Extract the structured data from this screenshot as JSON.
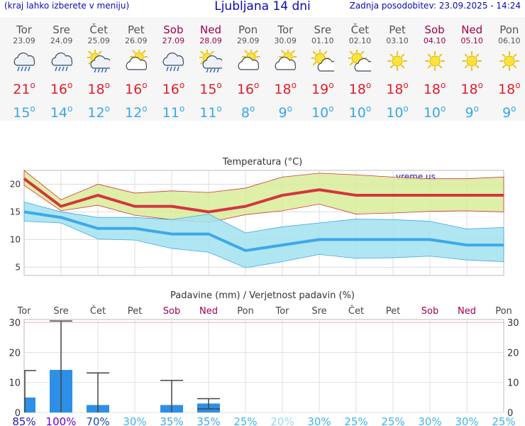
{
  "header": {
    "left_note": "(kraj lahko izberete v meniju)",
    "title": "Ljubljana 14 dni",
    "updated": "Zadnja posodobitev: 23.09.2025 - 14:24"
  },
  "degree_symbol": "o",
  "days": [
    {
      "name": "Tor",
      "date": "23.09",
      "weekend": false,
      "icon": "cloud-rain-icon",
      "tmax": "21",
      "tmin": "15"
    },
    {
      "name": "Sre",
      "date": "24.09",
      "weekend": false,
      "icon": "cloud-rain-icon",
      "tmax": "16",
      "tmin": "14"
    },
    {
      "name": "Čet",
      "date": "25.09",
      "weekend": false,
      "icon": "sun-cloud-rain-icon",
      "tmax": "18",
      "tmin": "12"
    },
    {
      "name": "Pet",
      "date": "26.09",
      "weekend": false,
      "icon": "sun-behind-cloud-icon",
      "tmax": "16",
      "tmin": "12"
    },
    {
      "name": "Sob",
      "date": "27.09",
      "weekend": true,
      "icon": "cloud-rain-icon",
      "tmax": "16",
      "tmin": "11"
    },
    {
      "name": "Ned",
      "date": "28.09",
      "weekend": true,
      "icon": "sun-cloud-rain-icon",
      "tmax": "15",
      "tmin": "11"
    },
    {
      "name": "Pon",
      "date": "29.09",
      "weekend": false,
      "icon": "sun-behind-cloud-icon",
      "tmax": "16",
      "tmin": "8"
    },
    {
      "name": "Tor",
      "date": "30.09",
      "weekend": false,
      "icon": "sun-behind-cloud-icon",
      "tmax": "18",
      "tmin": "9"
    },
    {
      "name": "Sre",
      "date": "01.10",
      "weekend": false,
      "icon": "partly-sunny-icon",
      "tmax": "19",
      "tmin": "10"
    },
    {
      "name": "Čet",
      "date": "02.10",
      "weekend": false,
      "icon": "partly-sunny-icon",
      "tmax": "18",
      "tmin": "10"
    },
    {
      "name": "Pet",
      "date": "03.10",
      "weekend": false,
      "icon": "sun-icon",
      "tmax": "18",
      "tmin": "10"
    },
    {
      "name": "Sob",
      "date": "04.10",
      "weekend": true,
      "icon": "sun-icon",
      "tmax": "18",
      "tmin": "10"
    },
    {
      "name": "Ned",
      "date": "05.10",
      "weekend": true,
      "icon": "sun-icon",
      "tmax": "18",
      "tmin": "9"
    },
    {
      "name": "Pon",
      "date": "06.10",
      "weekend": false,
      "icon": "sun-icon",
      "tmax": "18",
      "tmin": "9"
    }
  ],
  "chart_data": [
    {
      "type": "line",
      "title": "Temperatura (°C)",
      "watermark": "vreme.us",
      "x": [
        "Tor",
        "Sre",
        "Čet",
        "Pet",
        "Sob",
        "Ned",
        "Pon",
        "Tor",
        "Sre",
        "Čet",
        "Pet",
        "Sob",
        "Ned",
        "Pon"
      ],
      "ylim": [
        3.5,
        22.5
      ],
      "yticks": [
        5,
        10,
        15,
        20
      ],
      "grid": true,
      "series": [
        {
          "key": "max",
          "values": [
            21,
            16,
            18,
            16,
            16,
            15,
            16,
            18,
            19,
            18,
            18,
            18,
            18,
            18
          ],
          "range_low": [
            19.8,
            15.2,
            16.2,
            14.4,
            13.6,
            13.1,
            14.5,
            15.2,
            16.4,
            14.6,
            14.8,
            15.1,
            15.2,
            15.0
          ],
          "range_high": [
            22.5,
            17.2,
            20.0,
            18.4,
            18.8,
            18.5,
            19.3,
            21.3,
            22.0,
            21.7,
            21.3,
            21.0,
            21.0,
            21.3
          ],
          "color": "#d33541",
          "band_color": "#d8ec98"
        },
        {
          "key": "min",
          "values": [
            15,
            14,
            12,
            12,
            11,
            11,
            8,
            9,
            10,
            10,
            10,
            10,
            9,
            9
          ],
          "range_low": [
            13.3,
            13.0,
            10.1,
            9.9,
            8.4,
            7.7,
            4.9,
            6.0,
            7.3,
            6.6,
            6.7,
            7.0,
            6.3,
            6.0
          ],
          "range_high": [
            16.8,
            15.0,
            14.0,
            14.0,
            13.6,
            14.6,
            11.2,
            12.3,
            13.0,
            13.7,
            13.6,
            13.3,
            11.9,
            12.2
          ],
          "color": "#3fa8e8",
          "band_color": "#a2e2f0"
        }
      ]
    },
    {
      "type": "bar",
      "title": "Padavine (mm) / Verjetnost padavin (%)",
      "categories": [
        "Tor",
        "Sre",
        "Čet",
        "Pet",
        "Sob",
        "Ned",
        "Pon",
        "Tor",
        "Sre",
        "Čet",
        "Pet",
        "Sob",
        "Ned",
        "Pon"
      ],
      "weekend": [
        false,
        false,
        false,
        false,
        true,
        true,
        false,
        false,
        false,
        false,
        false,
        true,
        true,
        false
      ],
      "values": [
        5,
        14.2,
        2.5,
        0,
        2.5,
        3,
        0,
        0,
        0,
        0,
        0,
        0,
        0,
        0
      ],
      "error_high": [
        14,
        30.5,
        13.2,
        0,
        10.7,
        4.6,
        0,
        0,
        0,
        0,
        0,
        0,
        0,
        0
      ],
      "error_low": [
        0,
        0,
        0,
        0,
        0,
        1.2,
        0,
        0,
        0,
        0,
        0,
        0,
        0,
        0
      ],
      "probability": [
        "85%",
        "100%",
        "70%",
        "30%",
        "35%",
        "35%",
        "25%",
        "20%",
        "30%",
        "25%",
        "25%",
        "30%",
        "30%",
        "25%"
      ],
      "prob_colors": [
        "#2a1ab4",
        "#6a00c8",
        "#1a4ab0",
        "#3fb4e6",
        "#3fa8e6",
        "#3fa8e6",
        "#3fb4e6",
        "#9ad8f0",
        "#3fb4e6",
        "#3fb4e6",
        "#3fb4e6",
        "#3fb4e6",
        "#3fb4e6",
        "#3fb4e6"
      ],
      "ylim": [
        0,
        31
      ],
      "yticks": [
        0,
        10,
        20,
        30
      ],
      "bar_color": "#2e8fe6",
      "grid": true
    }
  ]
}
